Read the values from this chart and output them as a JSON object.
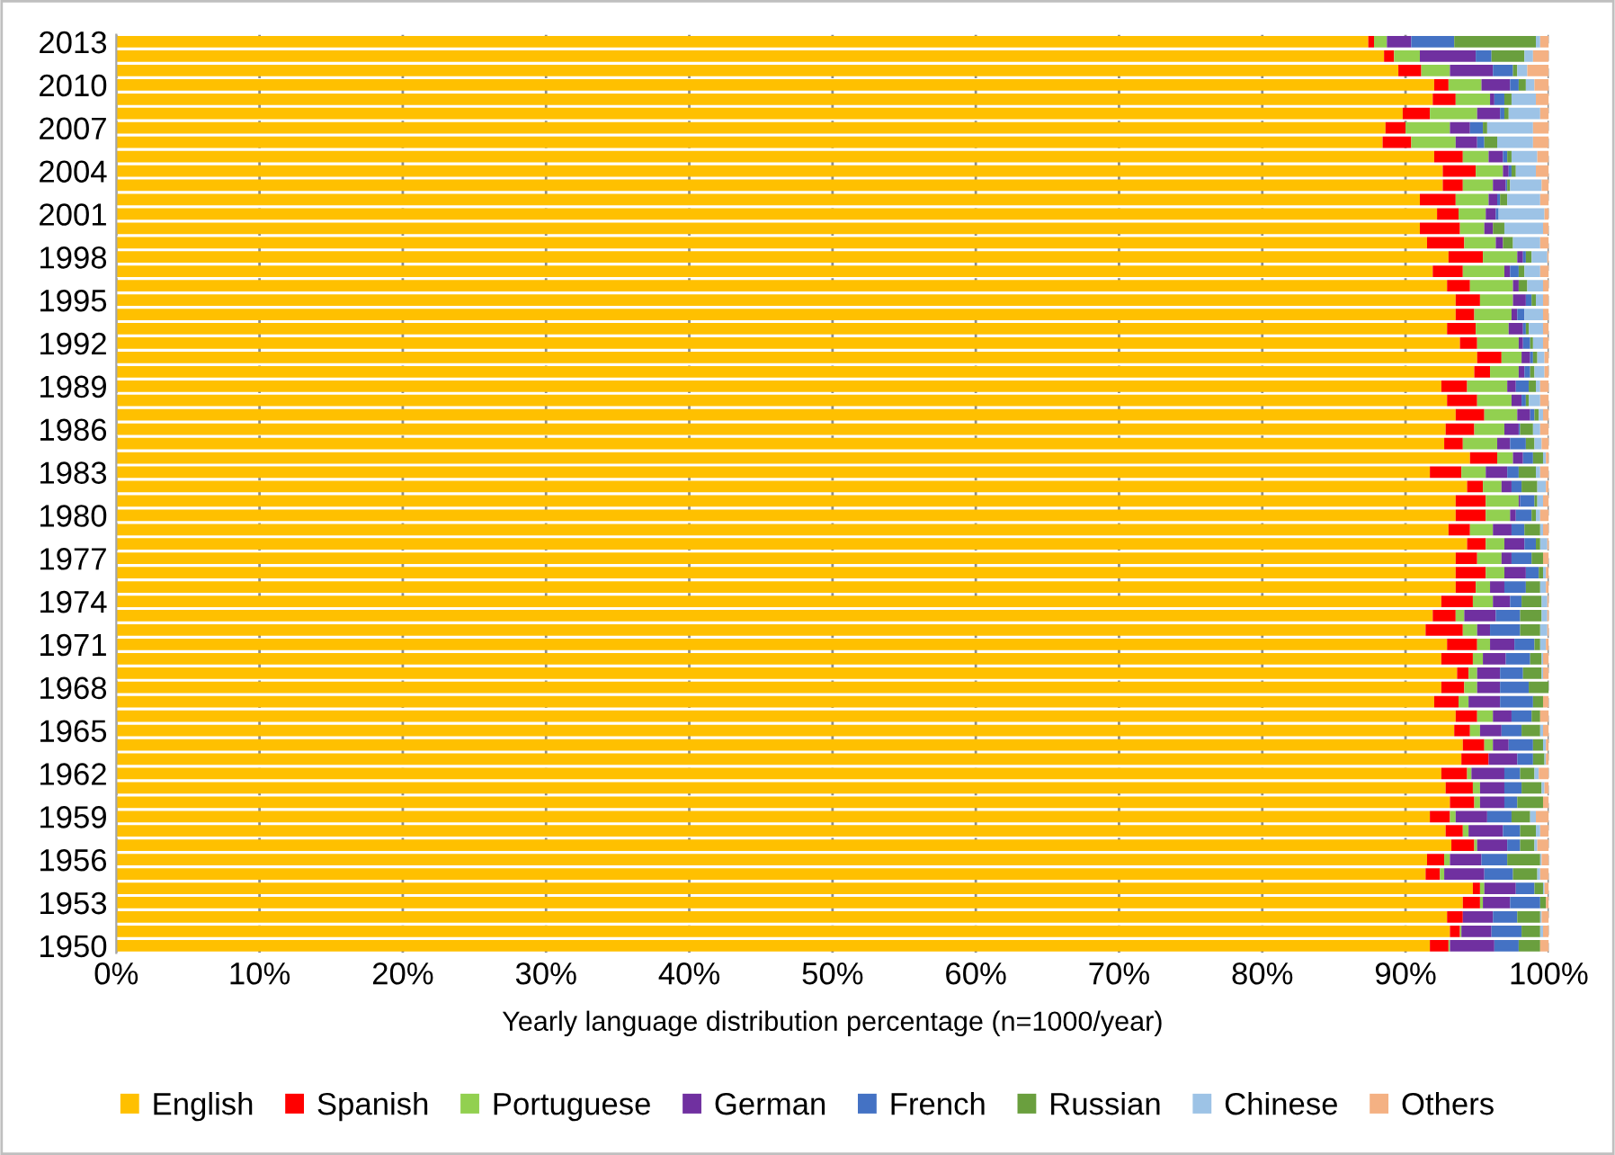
{
  "chart_data": {
    "type": "bar",
    "orientation": "horizontal",
    "stacked": true,
    "categories": [
      "2013",
      null,
      null,
      "2010",
      null,
      null,
      "2007",
      null,
      null,
      "2004",
      null,
      null,
      "2001",
      null,
      null,
      "1998",
      null,
      null,
      "1995",
      null,
      null,
      "1992",
      null,
      null,
      "1989",
      null,
      null,
      "1986",
      null,
      null,
      "1983",
      null,
      null,
      "1980",
      null,
      null,
      "1977",
      null,
      null,
      "1974",
      null,
      null,
      "1971",
      null,
      null,
      "1968",
      null,
      null,
      "1965",
      null,
      null,
      "1962",
      null,
      null,
      "1959",
      null,
      null,
      "1956",
      null,
      null,
      "1953",
      null,
      null,
      "1950"
    ],
    "series": [
      {
        "name": "English",
        "color": "#ffc000",
        "values": [
          87.4,
          88.5,
          89.5,
          92.0,
          91.9,
          89.8,
          88.6,
          88.4,
          92.0,
          92.6,
          92.6,
          91.0,
          92.2,
          91.0,
          91.5,
          93.0,
          91.9,
          92.9,
          93.5,
          93.5,
          92.9,
          93.8,
          95.0,
          94.8,
          92.5,
          92.9,
          93.5,
          92.8,
          92.7,
          94.5,
          91.7,
          94.3,
          93.5,
          93.5,
          93.0,
          94.3,
          93.5,
          93.5,
          93.5,
          92.5,
          91.9,
          91.4,
          92.9,
          92.5,
          93.6,
          92.5,
          92.0,
          93.5,
          93.4,
          94.0,
          93.9,
          92.5,
          92.8,
          93.1,
          91.7,
          92.8,
          93.2,
          91.5,
          91.4,
          94.7,
          94.0,
          92.9,
          93.1,
          91.7
        ]
      },
      {
        "name": "Spanish",
        "color": "#ff0000",
        "values": [
          0.4,
          0.7,
          1.6,
          1.0,
          1.6,
          1.9,
          1.4,
          2.0,
          2.0,
          2.3,
          1.4,
          2.5,
          1.5,
          2.8,
          2.6,
          2.4,
          2.1,
          1.6,
          1.7,
          1.3,
          2.0,
          1.2,
          1.7,
          1.1,
          1.8,
          2.1,
          2.0,
          2.0,
          1.3,
          1.9,
          2.2,
          1.1,
          2.1,
          2.1,
          1.5,
          1.3,
          1.5,
          2.1,
          1.4,
          2.2,
          1.6,
          2.6,
          2.1,
          2.2,
          0.8,
          1.6,
          1.7,
          1.5,
          1.1,
          1.5,
          1.9,
          1.8,
          1.9,
          1.7,
          1.4,
          1.2,
          1.6,
          1.2,
          1.0,
          0.5,
          1.2,
          1.1,
          0.7,
          1.3
        ]
      },
      {
        "name": "Portuguese",
        "color": "#92d050",
        "values": [
          0.9,
          1.8,
          2.0,
          2.3,
          2.4,
          3.3,
          3.1,
          3.1,
          1.8,
          1.9,
          2.1,
          2.3,
          1.9,
          1.7,
          2.2,
          2.4,
          2.9,
          3.0,
          2.3,
          2.6,
          2.3,
          2.9,
          1.4,
          2.0,
          2.8,
          2.4,
          2.3,
          2.1,
          2.4,
          1.1,
          1.7,
          1.3,
          2.3,
          1.7,
          1.6,
          1.3,
          1.7,
          1.3,
          1.0,
          1.4,
          0.6,
          1.0,
          0.9,
          0.7,
          0.6,
          0.9,
          0.7,
          1.1,
          0.7,
          0.6,
          0,
          0.3,
          0.5,
          0.4,
          0.4,
          0.4,
          0.2,
          0.4,
          0.3,
          0.3,
          0.2,
          0,
          0.1,
          0.1
        ]
      },
      {
        "name": "German",
        "color": "#7030a0",
        "values": [
          1.7,
          3.9,
          3.0,
          2.0,
          0.3,
          1.6,
          1.4,
          1.5,
          1.0,
          0.4,
          0.9,
          0.6,
          0.7,
          0.6,
          0.5,
          0.4,
          0.4,
          0.4,
          0.9,
          0.4,
          1.0,
          0.3,
          0.6,
          0.4,
          0.6,
          0.7,
          0.9,
          1.0,
          0.9,
          0.7,
          1.5,
          0.7,
          0.1,
          0.4,
          1.3,
          1.4,
          0.7,
          1.5,
          1.0,
          1.2,
          2.2,
          0.9,
          1.7,
          1.6,
          1.6,
          1.6,
          2.2,
          1.3,
          1.5,
          1.1,
          2.0,
          2.3,
          1.7,
          1.7,
          2.2,
          2.4,
          2.1,
          2.2,
          2.8,
          2.2,
          1.9,
          2.1,
          2.1,
          3.1
        ]
      },
      {
        "name": "French",
        "color": "#4472c4",
        "values": [
          3.0,
          1.1,
          1.4,
          0.6,
          0.7,
          0.3,
          0.9,
          0.5,
          0.3,
          0.2,
          0.1,
          0.2,
          0.2,
          0,
          0,
          0.2,
          0.6,
          0,
          0.4,
          0.5,
          0.2,
          0.5,
          0.2,
          0.4,
          0.9,
          0.3,
          0.3,
          0.1,
          1.1,
          0.7,
          0.8,
          0.7,
          1.0,
          1.1,
          0.9,
          0.8,
          1.4,
          0.9,
          1.5,
          0.8,
          1.7,
          2.1,
          1.4,
          1.7,
          1.6,
          2.0,
          2.3,
          1.4,
          1.4,
          1.7,
          1.1,
          1.1,
          1.2,
          0.9,
          1.7,
          1.2,
          0.9,
          1.8,
          2.0,
          1.3,
          2.1,
          1.7,
          2.1,
          1.7
        ]
      },
      {
        "name": "Russian",
        "color": "#6a9f3e",
        "values": [
          5.7,
          2.3,
          0.3,
          0.5,
          0.5,
          0.3,
          0.3,
          0.9,
          0.3,
          0.3,
          0.2,
          0.5,
          0,
          0.8,
          0.7,
          0.4,
          0.4,
          0.6,
          0.3,
          0,
          0.2,
          0.2,
          0.3,
          0.3,
          0.5,
          0.2,
          0.3,
          0.9,
          0.6,
          0.7,
          1.2,
          1.1,
          0.2,
          0.3,
          1.1,
          0.3,
          0.8,
          0.3,
          1.0,
          1.4,
          1.5,
          1.4,
          0.4,
          0.8,
          1.3,
          1.4,
          0.7,
          0.6,
          1.3,
          0.7,
          0.8,
          1.0,
          1.4,
          1.8,
          1.3,
          1.1,
          1.0,
          2.3,
          1.7,
          0.6,
          0.4,
          1.6,
          1.3,
          1.5
        ]
      },
      {
        "name": "Chinese",
        "color": "#9dc3e6",
        "values": [
          0.3,
          0.6,
          0.7,
          0.6,
          1.7,
          2.2,
          3.2,
          2.5,
          1.8,
          1.4,
          2.2,
          2.3,
          3.2,
          2.7,
          1.9,
          1.1,
          1.1,
          1.1,
          0.5,
          1.3,
          1.0,
          0.7,
          0.5,
          0.7,
          0.3,
          0.8,
          0.3,
          0.5,
          0.5,
          0.2,
          0.3,
          0.6,
          0.4,
          0.3,
          0.2,
          0.5,
          0,
          0.2,
          0.4,
          0.4,
          0.4,
          0.5,
          0.4,
          0.1,
          0.1,
          0,
          0,
          0,
          0.2,
          0.2,
          0.1,
          0.3,
          0.2,
          0,
          0.4,
          0.3,
          0.2,
          0.1,
          0.2,
          0.1,
          0,
          0.1,
          0.2,
          0
        ]
      },
      {
        "name": "Others",
        "color": "#f4b183",
        "values": [
          0.6,
          1.1,
          1.5,
          1.0,
          0.9,
          0.6,
          1.1,
          1.1,
          0.8,
          0.9,
          0.5,
          0.6,
          0.3,
          0.4,
          0.6,
          0.1,
          0.6,
          0.4,
          0.4,
          0.4,
          0.4,
          0.4,
          0.3,
          0.3,
          0.6,
          0.6,
          0.4,
          0.6,
          0.5,
          0.2,
          0.6,
          0.2,
          0.4,
          0.6,
          0.4,
          0.1,
          0.4,
          0.2,
          0.2,
          0.1,
          0.1,
          0.1,
          0.2,
          0.4,
          0.4,
          0,
          0.4,
          0.6,
          0.4,
          0.2,
          0.2,
          0.7,
          0.3,
          0.4,
          0.9,
          0.6,
          0.8,
          0.5,
          0.6,
          0.3,
          0.2,
          0.5,
          0.4,
          0.6
        ]
      }
    ],
    "xlim": [
      0,
      100
    ],
    "xticks": [
      {
        "value": 0,
        "label": "0%"
      },
      {
        "value": 10,
        "label": "10%"
      },
      {
        "value": 20,
        "label": "20%"
      },
      {
        "value": 30,
        "label": "30%"
      },
      {
        "value": 40,
        "label": "40%"
      },
      {
        "value": 50,
        "label": "50%"
      },
      {
        "value": 60,
        "label": "60%"
      },
      {
        "value": 70,
        "label": "70%"
      },
      {
        "value": 80,
        "label": "80%"
      },
      {
        "value": 90,
        "label": "90%"
      },
      {
        "value": 100,
        "label": "100%"
      }
    ],
    "xlabel": "Yearly language distribution percentage (n=1000/year)",
    "grid": "x",
    "legend": "bottom"
  }
}
